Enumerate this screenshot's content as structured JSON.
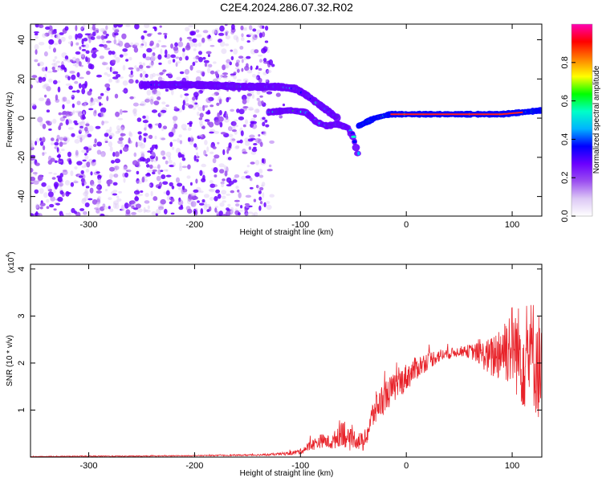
{
  "figure": {
    "title": "C2E4.2024.286.07.32.R02"
  },
  "chart_data": [
    {
      "type": "heatmap",
      "title": "C2E4.2024.286.07.32.R02",
      "xlabel": "Height of straight line (km)",
      "ylabel": "Frequency (Hz)",
      "xlim": [
        -355,
        128
      ],
      "ylim": [
        -50,
        48
      ],
      "x_ticks": [
        -300,
        -200,
        -100,
        0,
        100
      ],
      "y_ticks": [
        -40,
        -20,
        0,
        20,
        40
      ],
      "x_tick_labels": [
        "-300",
        "-200",
        "-100",
        "0",
        "100"
      ],
      "y_tick_labels": [
        "-40",
        "-20",
        "0",
        "20",
        "40"
      ],
      "colorbar": {
        "label": "Normalized spectral amplitude",
        "range": [
          0,
          1
        ],
        "ticks": [
          0.0,
          0.2,
          0.4,
          0.6,
          0.8
        ],
        "tick_labels": [
          "0.0",
          "0.2",
          "0.4",
          "0.6",
          "0.8"
        ],
        "colors": [
          "#ffffff",
          "#dcc8f5",
          "#9b4ef0",
          "#6a00ff",
          "#0000ff",
          "#00b4ff",
          "#00ffc8",
          "#00ff00",
          "#ffff00",
          "#ff8000",
          "#ff0000",
          "#ff00b4"
        ]
      },
      "features": [
        {
          "name": "upper track",
          "x": [
            -250,
            -200,
            -150,
            -120,
            -105,
            -95,
            -85,
            -75,
            -65
          ],
          "y": [
            17,
            17,
            16,
            16,
            15,
            12,
            8,
            4,
            0
          ]
        },
        {
          "name": "lower track",
          "x": [
            -130,
            -110,
            -95,
            -85,
            -75,
            -65,
            -55,
            -50,
            -45
          ],
          "y": [
            3,
            4,
            3,
            -2,
            -4,
            -3,
            -5,
            -10,
            -20
          ]
        },
        {
          "name": "strong line",
          "x": [
            -45,
            -30,
            -15,
            0,
            30,
            60,
            90,
            110,
            128
          ],
          "y": [
            -4,
            0,
            2,
            2,
            2,
            2,
            2,
            3,
            4
          ]
        }
      ]
    },
    {
      "type": "line",
      "xlabel": "Height of straight line (km)",
      "ylabel": "SNR (10 * v/v)",
      "y_multiplier_label": "(x10",
      "y_multiplier_exp": "4",
      "y_multiplier_close": ")",
      "xlim": [
        -355,
        128
      ],
      "ylim": [
        0,
        4.1
      ],
      "x_ticks": [
        -300,
        -200,
        -100,
        0,
        100
      ],
      "y_ticks": [
        1,
        2,
        3,
        4
      ],
      "x_tick_labels": [
        "-300",
        "-200",
        "-100",
        "0",
        "100"
      ],
      "y_tick_labels": [
        "1",
        "2",
        "3",
        "4"
      ],
      "series": [
        {
          "color": "#e8232a",
          "x": [
            -355,
            -300,
            -250,
            -200,
            -160,
            -130,
            -110,
            -100,
            -90,
            -80,
            -70,
            -60,
            -55,
            -50,
            -40,
            -30,
            -20,
            -10,
            0,
            10,
            20,
            30,
            40,
            50,
            60,
            70,
            80,
            90,
            100,
            110,
            120,
            128
          ],
          "y": [
            0.01,
            0.02,
            0.02,
            0.03,
            0.04,
            0.05,
            0.08,
            0.12,
            0.25,
            0.35,
            0.3,
            0.6,
            0.35,
            0.4,
            0.3,
            1.0,
            1.3,
            1.5,
            1.7,
            1.9,
            2.05,
            2.15,
            2.2,
            2.25,
            2.25,
            2.2,
            2.1,
            2.3,
            2.4,
            2.1,
            2.2,
            1.8
          ],
          "noise_amp": [
            0.005,
            0.01,
            0.01,
            0.01,
            0.015,
            0.02,
            0.04,
            0.06,
            0.12,
            0.15,
            0.15,
            0.35,
            0.25,
            0.2,
            0.2,
            0.35,
            0.35,
            0.3,
            0.3,
            0.25,
            0.2,
            0.15,
            0.12,
            0.1,
            0.15,
            0.25,
            0.45,
            0.7,
            0.9,
            1.1,
            1.2,
            1.2
          ]
        }
      ]
    }
  ]
}
